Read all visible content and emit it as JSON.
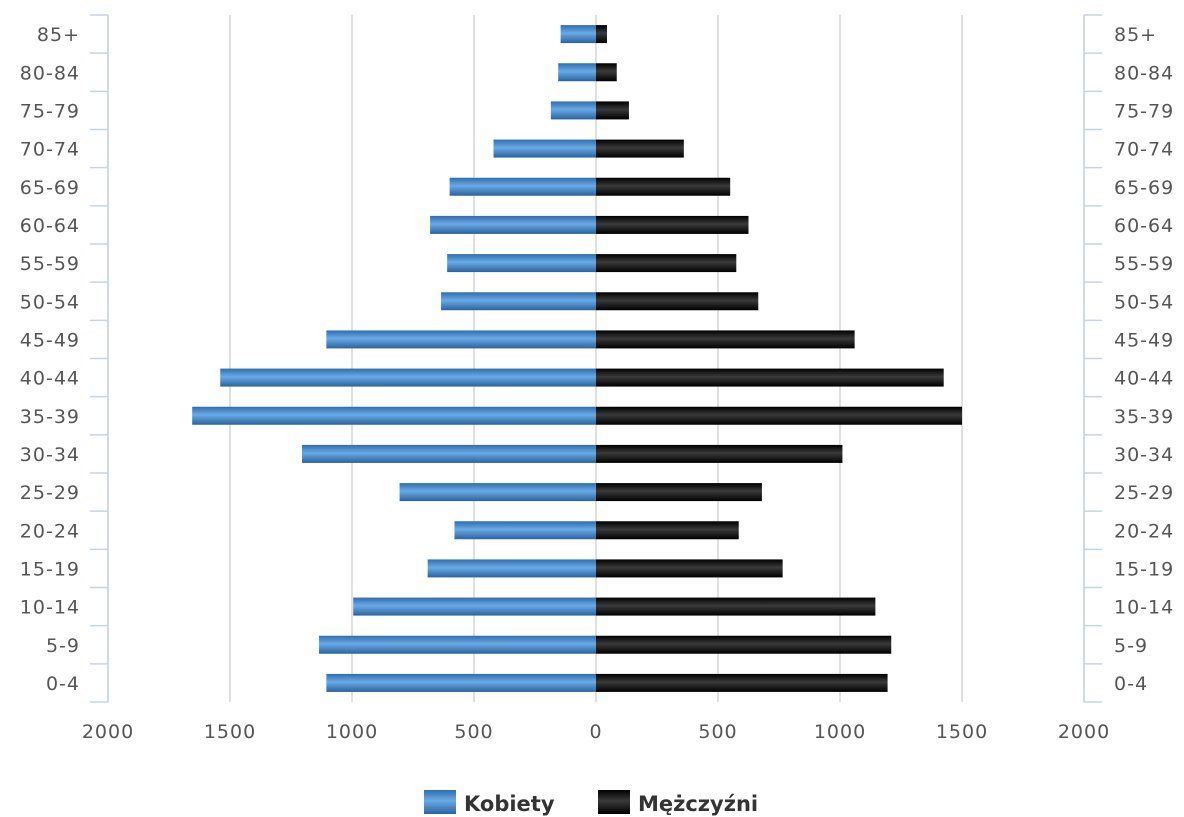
{
  "chart_data": {
    "type": "bar",
    "orientation": "horizontal",
    "layout": "population-pyramid",
    "categories": [
      "85+",
      "80-84",
      "75-79",
      "70-74",
      "65-69",
      "60-64",
      "55-59",
      "50-54",
      "45-49",
      "40-44",
      "35-39",
      "30-34",
      "25-29",
      "20-24",
      "15-19",
      "10-14",
      "5-9",
      "0-4"
    ],
    "series": [
      {
        "name": "Kobiety",
        "side": "left",
        "color": "#3d7fc4",
        "values": [
          145,
          155,
          185,
          420,
          600,
          680,
          610,
          635,
          1105,
          1540,
          1655,
          1205,
          805,
          580,
          690,
          995,
          1135,
          1105
        ]
      },
      {
        "name": "Mężczyźni",
        "side": "right",
        "color": "#1c1c1c",
        "values": [
          45,
          85,
          135,
          360,
          550,
          625,
          575,
          665,
          1060,
          1425,
          1500,
          1010,
          680,
          585,
          765,
          1145,
          1210,
          1195
        ]
      }
    ],
    "xlim": [
      -2000,
      2000
    ],
    "x_ticks": [
      "2000",
      "1500",
      "1000",
      "500",
      "0",
      "500",
      "1000",
      "1500",
      "2000"
    ],
    "grid": true,
    "legend_position": "bottom-center",
    "title": "",
    "xlabel": "",
    "ylabel": ""
  },
  "legend": {
    "items": [
      {
        "label": "Kobiety",
        "color": "#3d7fc4"
      },
      {
        "label": "Mężczyźni",
        "color": "#1c1c1c"
      }
    ]
  }
}
